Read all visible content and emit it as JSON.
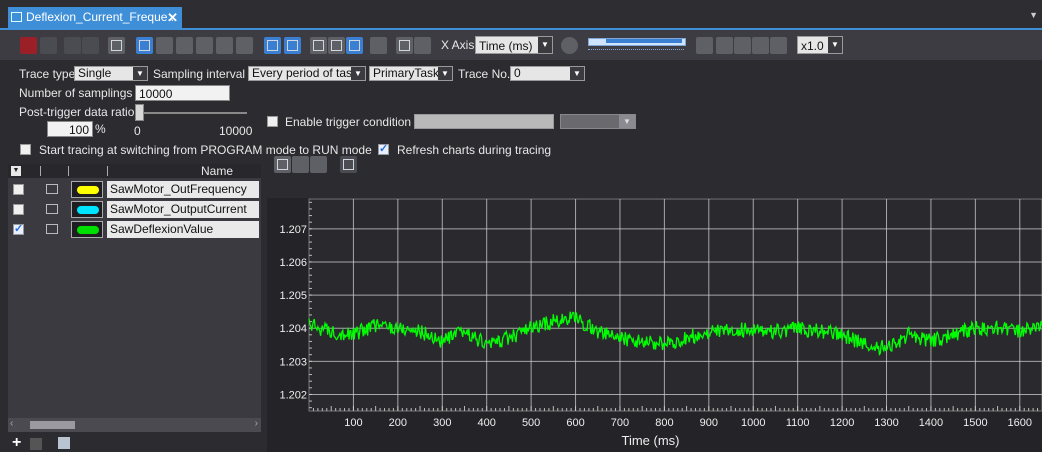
{
  "tab": {
    "title": "Deflexion_Current_Freque...",
    "close": "✕"
  },
  "toolbar": {
    "x_axis_label": "X Axis",
    "x_axis_value": "Time (ms)",
    "speed_value": "x1.0"
  },
  "settings": {
    "trace_type_label": "Trace type",
    "trace_type_value": "Single",
    "sampling_interval_label": "Sampling interval",
    "sampling_interval_value": "Every period of task",
    "task_value": "PrimaryTask",
    "trace_no_label": "Trace No.",
    "trace_no_value": "0",
    "num_samplings_label": "Number of samplings",
    "num_samplings_value": "10000",
    "post_trigger_label": "Post-trigger data ratio",
    "post_trigger_value": "100",
    "post_trigger_unit": "%",
    "slider_min": "0",
    "slider_max": "10000",
    "enable_trigger_label": "Enable trigger condition",
    "start_tracing_label": "Start tracing at switching from PROGRAM mode to RUN mode",
    "refresh_charts_label": "Refresh charts during tracing"
  },
  "variables": {
    "name_header": "Name",
    "items": [
      {
        "name": "SawMotor_OutFrequency",
        "color": "#ffff00",
        "checked": false
      },
      {
        "name": "SawMotor_OutputCurrent",
        "color": "#00e5ff",
        "checked": false
      },
      {
        "name": "SawDeflexionValue",
        "color": "#00e000",
        "checked": true
      }
    ]
  },
  "chart_data": {
    "type": "line",
    "xlabel": "Time (ms)",
    "ylabel": "",
    "xlim": [
      0,
      1650
    ],
    "ylim": [
      1.2015,
      1.2079
    ],
    "x_ticks": [
      "100",
      "200",
      "300",
      "400",
      "500",
      "600",
      "700",
      "800",
      "900",
      "1000",
      "1100",
      "1200",
      "1300",
      "1400",
      "1500",
      "1600"
    ],
    "y_ticks": [
      "1.202",
      "1.203",
      "1.204",
      "1.205",
      "1.206",
      "1.207"
    ],
    "grid": true,
    "series": [
      {
        "color": "#00ff00",
        "x": [
          0,
          50,
          100,
          150,
          200,
          250,
          300,
          350,
          400,
          450,
          500,
          550,
          600,
          650,
          700,
          750,
          800,
          850,
          900,
          950,
          1000,
          1050,
          1100,
          1150,
          1200,
          1250,
          1300,
          1350,
          1400,
          1450,
          1500,
          1550,
          1600,
          1650
        ],
        "values": [
          1.2041,
          1.2039,
          1.2038,
          1.2041,
          1.204,
          1.2039,
          1.2036,
          1.2039,
          1.2035,
          1.2037,
          1.204,
          1.2042,
          1.2043,
          1.2039,
          1.2037,
          1.2036,
          1.2035,
          1.2037,
          1.2039,
          1.2039,
          1.204,
          1.2039,
          1.204,
          1.2039,
          1.2038,
          1.2035,
          1.2034,
          1.2038,
          1.2036,
          1.2038,
          1.204,
          1.204,
          1.2039,
          1.2041
        ]
      }
    ]
  }
}
